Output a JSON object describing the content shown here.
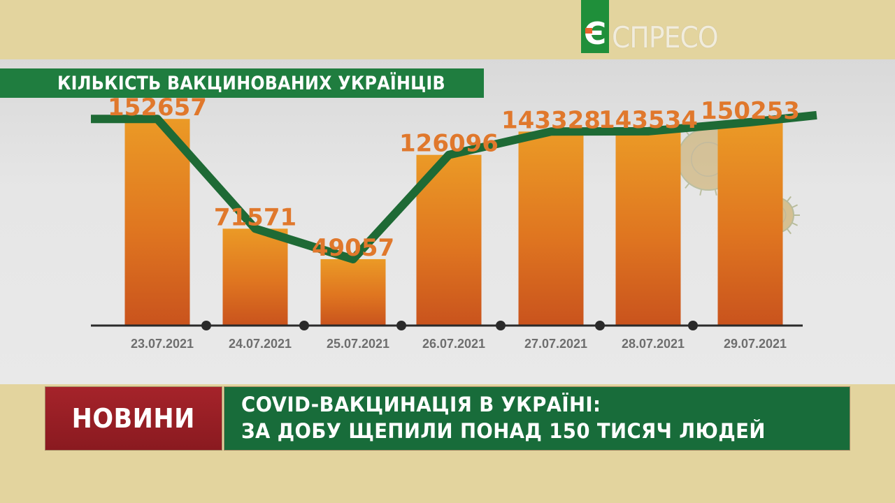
{
  "brand": {
    "logo_letter": "Є",
    "logo_text": "СПРЕСО"
  },
  "news": {
    "label": "НОВИНИ",
    "headline_line1": "COVID-ВАКЦИНАЦІЯ В УКРАЇНІ:",
    "headline_line2": "ЗА ДОБУ ЩЕПИЛИ  ПОНАД 150 ТИСЯЧ ЛЮДЕЙ"
  },
  "colors": {
    "bar": "#e07a1e",
    "line": "#1e6a35",
    "label": "#e0782c",
    "title_bar": "#1f7d3f",
    "news_red": "#9a1f25",
    "news_green": "#186c3a"
  },
  "chart_data": {
    "type": "bar",
    "title": "КІЛЬКІСТЬ ВАКЦИНОВАНИХ УКРАЇНЦІВ",
    "categories": [
      "23.07.2021",
      "24.07.2021",
      "25.07.2021",
      "26.07.2021",
      "27.07.2021",
      "28.07.2021",
      "29.07.2021"
    ],
    "values": [
      152657,
      71571,
      49057,
      126096,
      143328,
      143534,
      150253
    ],
    "data_labels": [
      "152657",
      "71571",
      "49057",
      "126096",
      "143328",
      "143534",
      "150253"
    ],
    "overlay": "line",
    "ylim": [
      0,
      160000
    ],
    "grid": false,
    "legend": "none"
  }
}
